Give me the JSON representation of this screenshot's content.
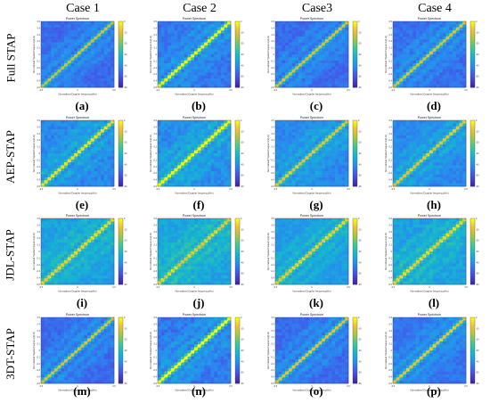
{
  "columns": [
    "Case 1",
    "Case 2",
    "Case3",
    "Case 4"
  ],
  "rows": [
    "Full STAP",
    "AEP-STAP",
    "JDL-STAP",
    "3DT-STAP"
  ],
  "colors": {
    "low": "#3e26a8",
    "mid": "#1a96df",
    "high": "#f9fb15",
    "background": "#ffffff"
  },
  "chart_data": [
    {
      "type": "heatmap",
      "panel_label": "(a)",
      "title": "Power Spectrum",
      "xlabel": "Normalized Doppler frequency(Hz)",
      "ylabel": "Normalized Spatial frequency(Hz)",
      "xlim": [
        -0.5,
        0.5
      ],
      "ylim": [
        -0.5,
        0.5
      ],
      "x_ticks": [
        "-0.5",
        "0",
        "0.5"
      ],
      "y_ticks": [
        "0.5",
        "0.4",
        "0.3",
        "0.2",
        "0.1",
        "0",
        "-0.1",
        "-0.2",
        "-0.3",
        "-0.4",
        "-0.5"
      ],
      "colorbar_ticks": [
        "0",
        "-10",
        "-20",
        "-30",
        "-40",
        "-50",
        "-60"
      ],
      "ridge": "clutter ridge along diagonal",
      "intensity": 0.55,
      "bgLevel": 0.22,
      "noise": 0.05
    },
    {
      "type": "heatmap",
      "panel_label": "(b)",
      "title": "Power Spectrum",
      "xlabel": "Normalized Doppler frequency(Hz)",
      "ylabel": "Normalized Spatial frequency(Hz)",
      "xlim": [
        -0.5,
        0.5
      ],
      "ylim": [
        -0.5,
        0.5
      ],
      "x_ticks": [
        "-0.5",
        "0",
        "0.5"
      ],
      "y_ticks": [
        "0.5",
        "0.4",
        "0.3",
        "0.2",
        "0.1",
        "0",
        "-0.1",
        "-0.2",
        "-0.3",
        "-0.4",
        "-0.5"
      ],
      "colorbar_ticks": [
        "0",
        "-10",
        "-20",
        "-30",
        "-40",
        "-50",
        "-60"
      ],
      "ridge": "clutter ridge along diagonal",
      "intensity": 0.8,
      "bgLevel": 0.25,
      "noise": 0.06
    },
    {
      "type": "heatmap",
      "panel_label": "(c)",
      "title": "Power Spectrum",
      "xlabel": "Normalized Doppler frequency(Hz)",
      "ylabel": "Normalized Spatial frequency(Hz)",
      "xlim": [
        -0.5,
        0.5
      ],
      "ylim": [
        -0.5,
        0.5
      ],
      "x_ticks": [
        "-0.5",
        "0",
        "0.5"
      ],
      "y_ticks": [
        "0.5",
        "0.4",
        "0.3",
        "0.2",
        "0.1",
        "0",
        "-0.1",
        "-0.2",
        "-0.3",
        "-0.4",
        "-0.5"
      ],
      "colorbar_ticks": [
        "0",
        "-10",
        "-20",
        "-30",
        "-40",
        "-50",
        "-60"
      ],
      "ridge": "clutter ridge along diagonal",
      "intensity": 0.6,
      "bgLevel": 0.22,
      "noise": 0.05
    },
    {
      "type": "heatmap",
      "panel_label": "(d)",
      "title": "Power Spectrum",
      "xlabel": "Normalized Doppler frequency(Hz)",
      "ylabel": "Normalized Spatial frequency(Hz)",
      "xlim": [
        -0.5,
        0.5
      ],
      "ylim": [
        -0.5,
        0.5
      ],
      "x_ticks": [
        "-0.5",
        "0",
        "0.5"
      ],
      "y_ticks": [
        "0.5",
        "0.4",
        "0.3",
        "0.2",
        "0.1",
        "0",
        "-0.1",
        "-0.2",
        "-0.3",
        "-0.4",
        "-0.5"
      ],
      "colorbar_ticks": [
        "0",
        "-10",
        "-20",
        "-30",
        "-40",
        "-50",
        "-60"
      ],
      "ridge": "clutter ridge along diagonal",
      "intensity": 0.6,
      "bgLevel": 0.23,
      "noise": 0.05
    },
    {
      "type": "heatmap",
      "panel_label": "(e)",
      "title": "Power Spectrum",
      "xlabel": "Normalized Doppler frequency(Hz)",
      "ylabel": "Normalized Spatial frequency(Hz)",
      "xlim": [
        -0.5,
        0.5
      ],
      "ylim": [
        -0.5,
        0.5
      ],
      "x_ticks": [
        "-0.5",
        "0",
        "0.5"
      ],
      "y_ticks": [
        "0.5",
        "0.4",
        "0.3",
        "0.2",
        "0.1",
        "0",
        "-0.1",
        "-0.2",
        "-0.3",
        "-0.4",
        "-0.5"
      ],
      "colorbar_ticks": [
        "0",
        "-10",
        "-20",
        "-30",
        "-40",
        "-50",
        "-60"
      ],
      "ridge": "clutter ridge along diagonal",
      "intensity": 0.7,
      "bgLevel": 0.3,
      "noise": 0.07
    },
    {
      "type": "heatmap",
      "panel_label": "(f)",
      "title": "Power Spectrum",
      "xlabel": "Normalized Doppler frequency(Hz)",
      "ylabel": "Normalized Spatial frequency(Hz)",
      "xlim": [
        -0.5,
        0.5
      ],
      "ylim": [
        -0.5,
        0.5
      ],
      "x_ticks": [
        "-0.5",
        "0",
        "0.5"
      ],
      "y_ticks": [
        "0.5",
        "0.4",
        "0.3",
        "0.2",
        "0.1",
        "0",
        "-0.1",
        "-0.2",
        "-0.3",
        "-0.4",
        "-0.5"
      ],
      "colorbar_ticks": [
        "0",
        "-10",
        "-20",
        "-30",
        "-40",
        "-50",
        "-60"
      ],
      "ridge": "clutter ridge along diagonal",
      "intensity": 0.85,
      "bgLevel": 0.32,
      "noise": 0.08
    },
    {
      "type": "heatmap",
      "panel_label": "(g)",
      "title": "Power Spectrum",
      "xlabel": "Normalized Doppler frequency(Hz)",
      "ylabel": "Normalized Spatial frequency(Hz)",
      "xlim": [
        -0.5,
        0.5
      ],
      "ylim": [
        -0.5,
        0.5
      ],
      "x_ticks": [
        "-0.5",
        "0",
        "0.5"
      ],
      "y_ticks": [
        "0.5",
        "0.4",
        "0.3",
        "0.2",
        "0.1",
        "0",
        "-0.1",
        "-0.2",
        "-0.3",
        "-0.4",
        "-0.5"
      ],
      "colorbar_ticks": [
        "0",
        "-10",
        "-20",
        "-30",
        "-40",
        "-50",
        "-60"
      ],
      "ridge": "clutter ridge along diagonal",
      "intensity": 0.6,
      "bgLevel": 0.3,
      "noise": 0.06
    },
    {
      "type": "heatmap",
      "panel_label": "(h)",
      "title": "Power Spectrum",
      "xlabel": "Normalized Doppler frequency(Hz)",
      "ylabel": "Normalized Spatial frequency(Hz)",
      "xlim": [
        -0.5,
        0.5
      ],
      "ylim": [
        -0.5,
        0.5
      ],
      "x_ticks": [
        "-0.5",
        "0",
        "0.5"
      ],
      "y_ticks": [
        "0.5",
        "0.4",
        "0.3",
        "0.2",
        "0.1",
        "0",
        "-0.1",
        "-0.2",
        "-0.3",
        "-0.4",
        "-0.5"
      ],
      "colorbar_ticks": [
        "0",
        "-10",
        "-20",
        "-30",
        "-40",
        "-50",
        "-60"
      ],
      "ridge": "clutter ridge along diagonal",
      "intensity": 0.6,
      "bgLevel": 0.3,
      "noise": 0.06
    },
    {
      "type": "heatmap",
      "panel_label": "(i)",
      "title": "Power Spectrum",
      "xlabel": "Normalized Doppler frequency(Hz)",
      "ylabel": "Normalized Spatial frequency(Hz)",
      "xlim": [
        -0.5,
        0.5
      ],
      "ylim": [
        -0.5,
        0.5
      ],
      "x_ticks": [
        "-0.5",
        "0",
        "0.5"
      ],
      "y_ticks": [
        "0.5",
        "0.4",
        "0.3",
        "0.2",
        "0.1",
        "0",
        "-0.1",
        "-0.2",
        "-0.3",
        "-0.4",
        "-0.5"
      ],
      "colorbar_ticks": [
        "0",
        "-10",
        "-20",
        "-30",
        "-40",
        "-50",
        "-60"
      ],
      "ridge": "clutter ridge along diagonal",
      "intensity": 0.6,
      "bgLevel": 0.38,
      "noise": 0.07
    },
    {
      "type": "heatmap",
      "panel_label": "(j)",
      "title": "Power Spectrum",
      "xlabel": "Normalized Doppler frequency(Hz)",
      "ylabel": "Normalized Spatial frequency(Hz)",
      "xlim": [
        -0.5,
        0.5
      ],
      "ylim": [
        -0.5,
        0.5
      ],
      "x_ticks": [
        "-0.5",
        "0",
        "0.5"
      ],
      "y_ticks": [
        "0.5",
        "0.4",
        "0.3",
        "0.2",
        "0.1",
        "0",
        "-0.1",
        "-0.2",
        "-0.3",
        "-0.4",
        "-0.5"
      ],
      "colorbar_ticks": [
        "0",
        "-10",
        "-20",
        "-30",
        "-40",
        "-50",
        "-60"
      ],
      "ridge": "clutter ridge along diagonal",
      "intensity": 0.55,
      "bgLevel": 0.4,
      "noise": 0.07
    },
    {
      "type": "heatmap",
      "panel_label": "(k)",
      "title": "Power Spectrum",
      "xlabel": "Normalized Doppler frequency(Hz)",
      "ylabel": "Normalized Spatial frequency(Hz)",
      "xlim": [
        -0.5,
        0.5
      ],
      "ylim": [
        -0.5,
        0.5
      ],
      "x_ticks": [
        "-0.5",
        "0",
        "0.5"
      ],
      "y_ticks": [
        "0.5",
        "0.4",
        "0.3",
        "0.2",
        "0.1",
        "0",
        "-0.1",
        "-0.2",
        "-0.3",
        "-0.4",
        "-0.5"
      ],
      "colorbar_ticks": [
        "0",
        "-10",
        "-20",
        "-30",
        "-40",
        "-50",
        "-60"
      ],
      "ridge": "clutter ridge along diagonal",
      "intensity": 0.6,
      "bgLevel": 0.36,
      "noise": 0.06
    },
    {
      "type": "heatmap",
      "panel_label": "(l)",
      "title": "Power Spectrum",
      "xlabel": "Normalized Doppler frequency(Hz)",
      "ylabel": "Normalized Spatial frequency(Hz)",
      "xlim": [
        -0.5,
        0.5
      ],
      "ylim": [
        -0.5,
        0.5
      ],
      "x_ticks": [
        "-0.5",
        "0",
        "0.5"
      ],
      "y_ticks": [
        "0.5",
        "0.4",
        "0.3",
        "0.2",
        "0.1",
        "0",
        "-0.1",
        "-0.2",
        "-0.3",
        "-0.4",
        "-0.5"
      ],
      "colorbar_ticks": [
        "0",
        "-10",
        "-20",
        "-30",
        "-40",
        "-50",
        "-60"
      ],
      "ridge": "clutter ridge along diagonal",
      "intensity": 0.6,
      "bgLevel": 0.38,
      "noise": 0.07
    },
    {
      "type": "heatmap",
      "panel_label": "(m)",
      "title": "Power Spectrum",
      "xlabel": "Normalized Doppler frequency(Hz)",
      "ylabel": "Normalized Spatial frequency(Hz)",
      "xlim": [
        -0.5,
        0.5
      ],
      "ylim": [
        -0.5,
        0.5
      ],
      "x_ticks": [
        "-0.5",
        "0",
        "0.5"
      ],
      "y_ticks": [
        "0.5",
        "0.4",
        "0.3",
        "0.2",
        "0.1",
        "0",
        "-0.1",
        "-0.2",
        "-0.3",
        "-0.4",
        "-0.5"
      ],
      "colorbar_ticks": [
        "0",
        "-10",
        "-20",
        "-30",
        "-40",
        "-50",
        "-60"
      ],
      "ridge": "clutter ridge along diagonal",
      "intensity": 0.6,
      "bgLevel": 0.22,
      "noise": 0.05
    },
    {
      "type": "heatmap",
      "panel_label": "(n)",
      "title": "Power Spectrum",
      "xlabel": "Normalized Doppler frequency(Hz)",
      "ylabel": "Normalized Spatial frequency(Hz)",
      "xlim": [
        -0.5,
        0.5
      ],
      "ylim": [
        -0.5,
        0.5
      ],
      "x_ticks": [
        "-0.5",
        "0",
        "0.5"
      ],
      "y_ticks": [
        "0.5",
        "0.4",
        "0.3",
        "0.2",
        "0.1",
        "0",
        "-0.1",
        "-0.2",
        "-0.3",
        "-0.4",
        "-0.5"
      ],
      "colorbar_ticks": [
        "0",
        "-10",
        "-20",
        "-30",
        "-40",
        "-50",
        "-60"
      ],
      "ridge": "clutter ridge along diagonal",
      "intensity": 0.9,
      "bgLevel": 0.26,
      "noise": 0.07
    },
    {
      "type": "heatmap",
      "panel_label": "(o)",
      "title": "Power Spectrum",
      "xlabel": "Normalized Doppler frequency(Hz)",
      "ylabel": "Normalized Spatial frequency(Hz)",
      "xlim": [
        -0.5,
        0.5
      ],
      "ylim": [
        -0.5,
        0.5
      ],
      "x_ticks": [
        "-0.5",
        "0",
        "0.5"
      ],
      "y_ticks": [
        "0.5",
        "0.4",
        "0.3",
        "0.2",
        "0.1",
        "0",
        "-0.1",
        "-0.2",
        "-0.3",
        "-0.4",
        "-0.5"
      ],
      "colorbar_ticks": [
        "0",
        "-10",
        "-20",
        "-30",
        "-40",
        "-50",
        "-60"
      ],
      "ridge": "clutter ridge along diagonal",
      "intensity": 0.65,
      "bgLevel": 0.22,
      "noise": 0.05
    },
    {
      "type": "heatmap",
      "panel_label": "(p)",
      "title": "Power Spectrum",
      "xlabel": "Normalized Doppler frequency(Hz)",
      "ylabel": "Normalized Spatial frequency(Hz)",
      "xlim": [
        -0.5,
        0.5
      ],
      "ylim": [
        -0.5,
        0.5
      ],
      "x_ticks": [
        "-0.5",
        "0",
        "0.5"
      ],
      "y_ticks": [
        "0.5",
        "0.4",
        "0.3",
        "0.2",
        "0.1",
        "0",
        "-0.1",
        "-0.2",
        "-0.3",
        "-0.4",
        "-0.5"
      ],
      "colorbar_ticks": [
        "0",
        "-10",
        "-20",
        "-30",
        "-40",
        "-50",
        "-60"
      ],
      "ridge": "clutter ridge along diagonal",
      "intensity": 0.65,
      "bgLevel": 0.24,
      "noise": 0.05
    }
  ]
}
